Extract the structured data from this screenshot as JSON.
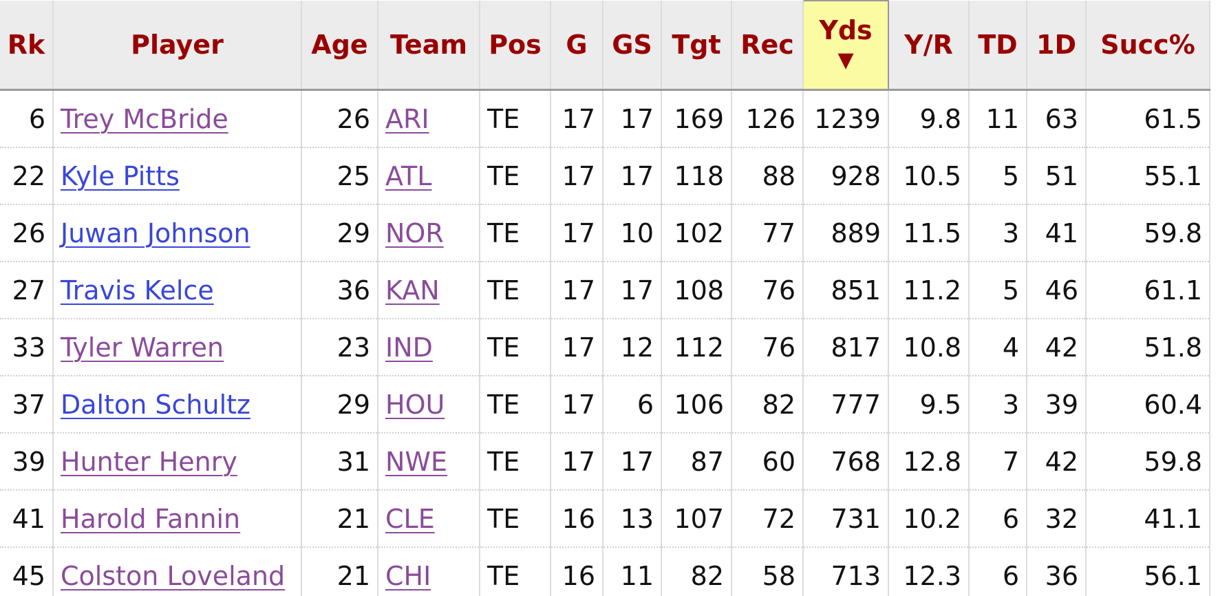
{
  "table": {
    "headers": [
      "Rk",
      "Player",
      "Age",
      "Team",
      "Pos",
      "G",
      "GS",
      "Tgt",
      "Rec",
      "Yds",
      "Y/R",
      "TD",
      "1D",
      "Succ%"
    ],
    "sorted_column": 9,
    "player_link_colors": [
      "#8a4b9a",
      "#3846d9",
      "#3846d9",
      "#3846d9",
      "#8a4b9a",
      "#3846d9",
      "#8a4b9a",
      "#8a4b9a",
      "#8a4b9a"
    ],
    "rows": [
      [
        "6",
        "Trey McBride",
        "26",
        "ARI",
        "TE",
        "17",
        "17",
        "169",
        "126",
        "1239",
        "9.8",
        "11",
        "63",
        "61.5"
      ],
      [
        "22",
        "Kyle Pitts",
        "25",
        "ATL",
        "TE",
        "17",
        "17",
        "118",
        "88",
        "928",
        "10.5",
        "5",
        "51",
        "55.1"
      ],
      [
        "26",
        "Juwan Johnson",
        "29",
        "NOR",
        "TE",
        "17",
        "10",
        "102",
        "77",
        "889",
        "11.5",
        "3",
        "41",
        "59.8"
      ],
      [
        "27",
        "Travis Kelce",
        "36",
        "KAN",
        "TE",
        "17",
        "17",
        "108",
        "76",
        "851",
        "11.2",
        "5",
        "46",
        "61.1"
      ],
      [
        "33",
        "Tyler Warren",
        "23",
        "IND",
        "TE",
        "17",
        "12",
        "112",
        "76",
        "817",
        "10.8",
        "4",
        "42",
        "51.8"
      ],
      [
        "37",
        "Dalton Schultz",
        "29",
        "HOU",
        "TE",
        "17",
        "6",
        "106",
        "82",
        "777",
        "9.5",
        "3",
        "39",
        "60.4"
      ],
      [
        "39",
        "Hunter Henry",
        "31",
        "NWE",
        "TE",
        "17",
        "17",
        "87",
        "60",
        "768",
        "12.8",
        "7",
        "42",
        "59.8"
      ],
      [
        "41",
        "Harold Fannin",
        "21",
        "CLE",
        "TE",
        "16",
        "13",
        "107",
        "72",
        "731",
        "10.2",
        "6",
        "32",
        "41.1"
      ],
      [
        "45",
        "Colston Loveland",
        "21",
        "CHI",
        "TE",
        "16",
        "11",
        "82",
        "58",
        "713",
        "12.3",
        "6",
        "36",
        "56.1"
      ]
    ]
  }
}
